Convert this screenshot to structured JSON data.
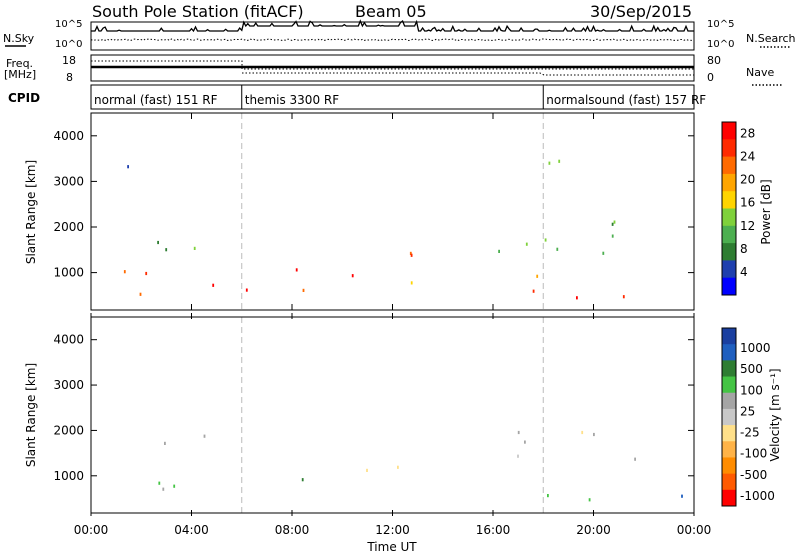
{
  "header": {
    "station": "South Pole Station (fitACF)",
    "beam": "Beam 05",
    "date": "30/Sep/2015"
  },
  "strip_labels": {
    "nsky": "N.Sky",
    "nsearch": "N.Search",
    "freq_line1": "Freq.",
    "freq_line2": "[MHz]",
    "nave": "Nave",
    "cpid": "CPID"
  },
  "noise_ticks": {
    "top": "10^5",
    "bottom": "10^0"
  },
  "freq_ticks": [
    "18",
    "8"
  ],
  "nave_ticks": [
    "80",
    "0"
  ],
  "cpid_segments": [
    {
      "label": "normal (fast) 151 RF",
      "start_h": 0,
      "end_h": 6
    },
    {
      "label": "themis 3300 RF",
      "start_h": 6,
      "end_h": 18
    },
    {
      "label": "normalsound (fast) 157 RF",
      "start_h": 18,
      "end_h": 24
    }
  ],
  "colors": {
    "power_scale": [
      "#0000ff",
      "#1e3fae",
      "#2e7d32",
      "#4caf50",
      "#7fd13b",
      "#ffd400",
      "#ffa500",
      "#ff6a00",
      "#ff2a00",
      "#ff0000"
    ],
    "velocity_scale": [
      "#ff0000",
      "#ff5a00",
      "#ff8c00",
      "#ffb347",
      "#ffe08a",
      "#c8c8c8",
      "#a5a5a5",
      "#44c444",
      "#2e7d32",
      "#1f5fbf",
      "#1a3fa0"
    ]
  },
  "chart_data": [
    {
      "type": "heatmap",
      "name": "power",
      "xlabel": "",
      "ylabel": "Slant Range [km]",
      "x_range_hours": [
        0,
        24
      ],
      "x_ticks": [
        "00:00",
        "04:00",
        "08:00",
        "12:00",
        "16:00",
        "20:00",
        "00:00"
      ],
      "ylim": [
        180,
        4500
      ],
      "y_ticks": [
        1000,
        2000,
        3000,
        4000
      ],
      "colorbar": {
        "label": "Power [dB]",
        "ticks": [
          4,
          8,
          12,
          16,
          20,
          24,
          28
        ],
        "range": [
          0,
          30
        ]
      },
      "scatter_bands": [
        {
          "x0": 0.5,
          "x1": 6.5,
          "y0": 500,
          "y1": 1200,
          "value": 26
        },
        {
          "x0": 6.5,
          "x1": 10.5,
          "y0": 500,
          "y1": 1150,
          "value": 27
        },
        {
          "x0": 10.5,
          "x1": 13.0,
          "y0": 800,
          "y1": 1700,
          "value": 22
        },
        {
          "x0": 0.5,
          "x1": 5.0,
          "y0": 1400,
          "y1": 2000,
          "value": 11
        },
        {
          "x0": 1.0,
          "x1": 5.0,
          "y0": 3200,
          "y1": 3500,
          "value": 7
        },
        {
          "x0": 16.0,
          "x1": 24.0,
          "y0": 1300,
          "y1": 2200,
          "value": 12
        },
        {
          "x0": 17.5,
          "x1": 24.0,
          "y0": 450,
          "y1": 1000,
          "value": 24
        },
        {
          "x0": 18.0,
          "x1": 21.5,
          "y0": 3200,
          "y1": 3600,
          "value": 10
        }
      ]
    },
    {
      "type": "heatmap",
      "name": "velocity",
      "xlabel": "Time UT",
      "ylabel": "Slant Range [km]",
      "x_range_hours": [
        0,
        24
      ],
      "x_ticks": [
        "00:00",
        "04:00",
        "08:00",
        "12:00",
        "16:00",
        "20:00",
        "00:00"
      ],
      "ylim": [
        180,
        4500
      ],
      "y_ticks": [
        1000,
        2000,
        3000,
        4000
      ],
      "colorbar": {
        "label": "Velocity [m s⁻¹]",
        "ticks": [
          "1000",
          "500",
          "100",
          "25",
          "-25",
          "-100",
          "-500",
          "-1000"
        ]
      },
      "scatter_bands": [
        {
          "x0": 2.5,
          "x1": 9.5,
          "y0": 550,
          "y1": 1100,
          "value": -200
        },
        {
          "x0": 10.5,
          "x1": 13.0,
          "y0": 700,
          "y1": 1500,
          "value": 0
        },
        {
          "x0": 0.5,
          "x1": 5.0,
          "y0": 1700,
          "y1": 2100,
          "value": 10
        },
        {
          "x0": 16.5,
          "x1": 23.5,
          "y0": 1400,
          "y1": 2200,
          "value": 15
        },
        {
          "x0": 18.0,
          "x1": 24.0,
          "y0": 450,
          "y1": 950,
          "value": -300
        }
      ]
    }
  ]
}
